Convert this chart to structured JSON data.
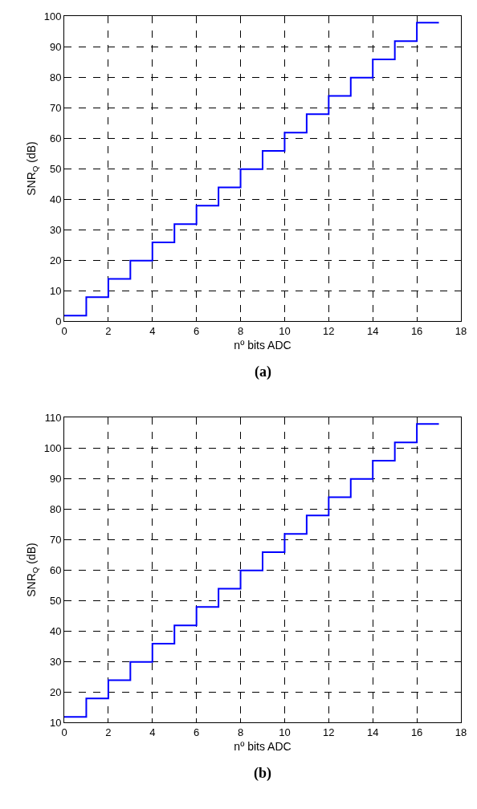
{
  "chart_data": [
    {
      "type": "step",
      "xlabel": "nº bits ADC",
      "ylabel": "SNR$_{Q}$ (dB)",
      "annotations": [
        "(a)"
      ],
      "x": [
        0,
        1,
        2,
        3,
        4,
        5,
        6,
        7,
        8,
        9,
        10,
        11,
        12,
        13,
        14,
        15,
        16,
        17
      ],
      "series": [
        {
          "color": "#0000ff",
          "values": [
            1.8,
            7.8,
            13.8,
            19.8,
            25.8,
            31.8,
            37.8,
            43.8,
            49.8,
            55.8,
            61.8,
            67.8,
            73.8,
            79.8,
            85.8,
            91.8,
            97.8,
            97.8
          ]
        }
      ],
      "xlim": [
        0,
        18
      ],
      "xticks": [
        0,
        2,
        4,
        6,
        8,
        10,
        12,
        14,
        16,
        18
      ],
      "ylim": [
        0,
        100
      ],
      "yticks": [
        0,
        10,
        20,
        30,
        40,
        50,
        60,
        70,
        80,
        90,
        100
      ],
      "grid": true,
      "line_style": "solid"
    },
    {
      "type": "step",
      "xlabel": "nº bits ADC",
      "ylabel": "SNR$_{Q}$ (dB)",
      "annotations": [
        "(b)"
      ],
      "x": [
        0,
        1,
        2,
        3,
        4,
        5,
        6,
        7,
        8,
        9,
        10,
        11,
        12,
        13,
        14,
        15,
        16,
        17
      ],
      "series": [
        {
          "color": "#0000ff",
          "values": [
            11.8,
            17.8,
            23.8,
            29.8,
            35.8,
            41.8,
            47.8,
            53.8,
            59.8,
            65.8,
            71.8,
            77.8,
            83.8,
            89.8,
            95.8,
            101.8,
            107.8,
            107.8
          ]
        }
      ],
      "xlim": [
        0,
        18
      ],
      "xticks": [
        0,
        2,
        4,
        6,
        8,
        10,
        12,
        14,
        16,
        18
      ],
      "ylim": [
        10,
        110
      ],
      "yticks": [
        10,
        20,
        30,
        40,
        50,
        60,
        70,
        80,
        90,
        100,
        110
      ],
      "grid": true,
      "line_style": "solid"
    }
  ]
}
